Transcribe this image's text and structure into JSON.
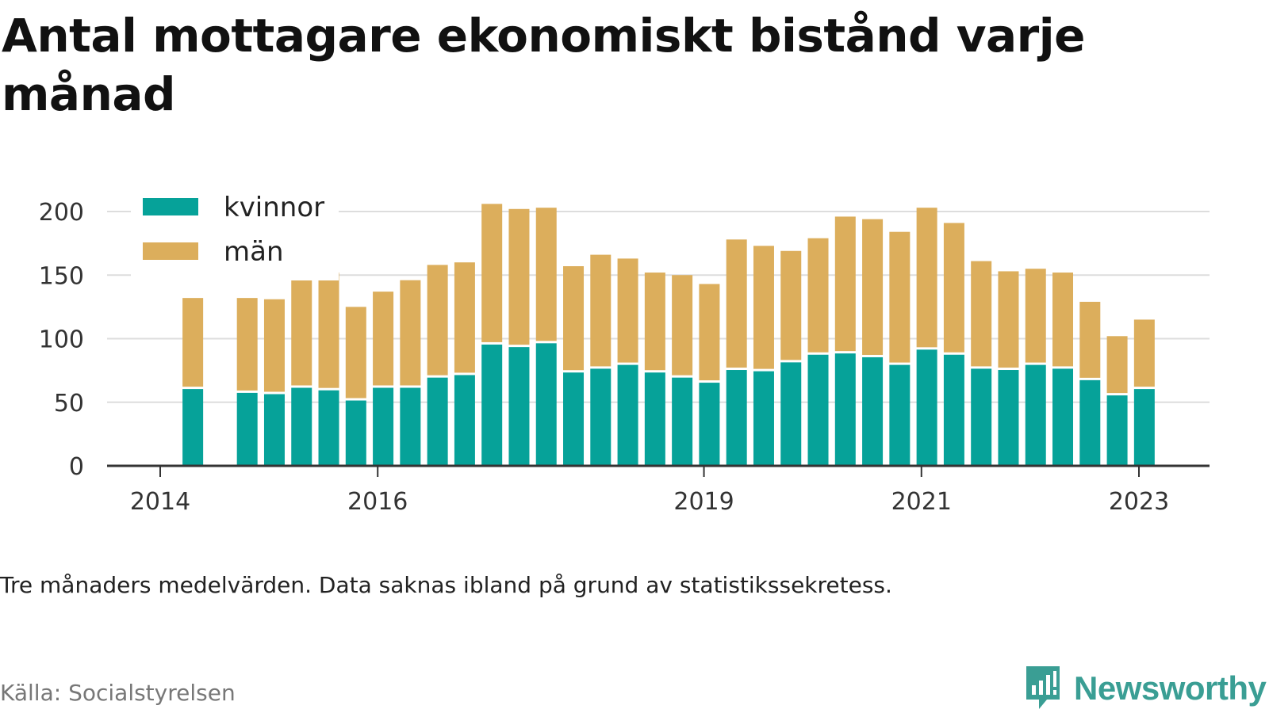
{
  "title": "Antal mottagare ekonomiskt bistånd varje månad",
  "footnote": "Tre månaders medelvärden. Data saknas ibland på grund av statistikssekretess.",
  "source": "Källa: Socialstyrelsen",
  "brand": "Newsworthy",
  "colors": {
    "kvinnor": "#06a299",
    "man": "#dcae5c",
    "axis": "#333333",
    "grid": "#dddddd",
    "brand": "#3a9e94"
  },
  "chart_data": {
    "type": "bar",
    "stacked": true,
    "legend_position": "top-left",
    "grid": true,
    "ylim": [
      0,
      200
    ],
    "yticks": [
      0,
      50,
      100,
      150,
      200
    ],
    "x": [
      2014.3,
      2014.8,
      2015.05,
      2015.3,
      2015.55,
      2015.8,
      2016.05,
      2016.3,
      2016.55,
      2016.8,
      2017.05,
      2017.3,
      2017.55,
      2017.8,
      2018.05,
      2018.3,
      2018.55,
      2018.8,
      2019.05,
      2019.3,
      2019.55,
      2019.8,
      2020.05,
      2020.3,
      2020.55,
      2020.8,
      2021.05,
      2021.3,
      2021.55,
      2021.8,
      2022.05,
      2022.3,
      2022.55,
      2022.8,
      2023.05
    ],
    "xticks": [
      {
        "value": 2014,
        "label": "2014"
      },
      {
        "value": 2016,
        "label": "2016"
      },
      {
        "value": 2019,
        "label": "2019"
      },
      {
        "value": 2021,
        "label": "2021"
      },
      {
        "value": 2023,
        "label": "2023"
      }
    ],
    "series": [
      {
        "name": "kvinnor",
        "values": [
          61,
          58,
          57,
          62,
          60,
          52,
          62,
          62,
          70,
          72,
          96,
          94,
          97,
          74,
          77,
          80,
          74,
          70,
          66,
          76,
          75,
          82,
          88,
          89,
          86,
          80,
          92,
          88,
          77,
          76,
          80,
          77,
          68,
          56,
          61
        ]
      },
      {
        "name": "män",
        "values": [
          71,
          74,
          74,
          84,
          92,
          73,
          75,
          84,
          88,
          88,
          110,
          108,
          106,
          83,
          89,
          83,
          78,
          80,
          77,
          102,
          98,
          87,
          91,
          107,
          108,
          104,
          111,
          103,
          84,
          77,
          75,
          75,
          61,
          46,
          54
        ]
      }
    ]
  }
}
